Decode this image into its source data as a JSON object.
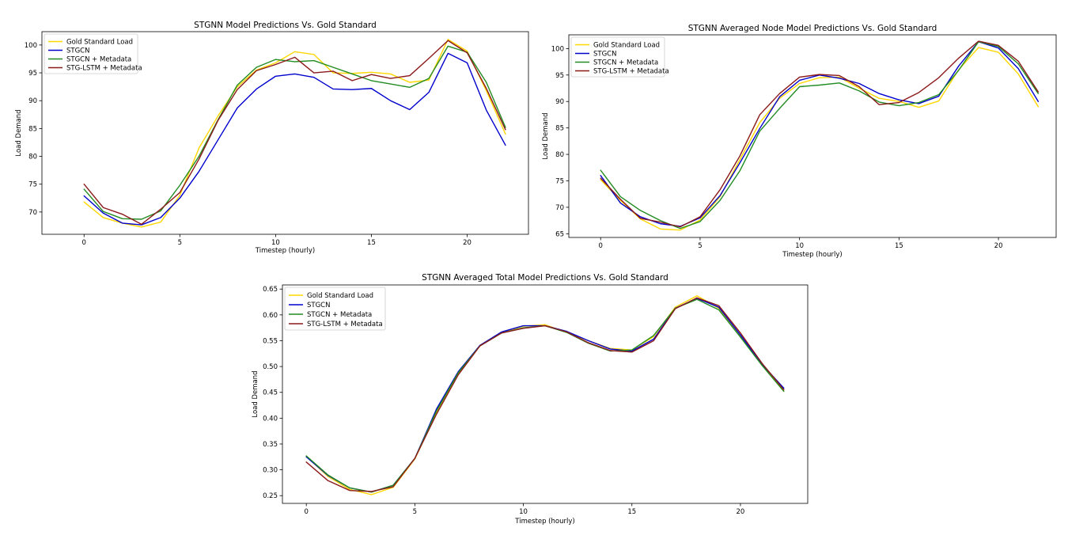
{
  "chart_data": [
    {
      "type": "line",
      "title": "STGNN Model Predictions Vs. Gold Standard",
      "xlabel": "Timestep (hourly)",
      "ylabel": "Load Demand",
      "x": [
        0,
        1,
        2,
        3,
        4,
        5,
        6,
        7,
        8,
        9,
        10,
        11,
        12,
        13,
        14,
        15,
        16,
        17,
        18,
        19,
        20,
        21,
        22
      ],
      "xlim": [
        -2.2,
        23.2
      ],
      "ylim": [
        66.0,
        102.4
      ],
      "xticks": [
        0,
        5,
        10,
        15,
        20
      ],
      "yticks": [
        70,
        75,
        80,
        85,
        90,
        95,
        100
      ],
      "legend_position": "upper-left",
      "grid": false,
      "series": [
        {
          "name": "Gold Standard Load",
          "color": "#FFD700",
          "values": [
            71.8,
            69.0,
            68.0,
            67.3,
            68.2,
            73.0,
            81.5,
            87.3,
            92.5,
            95.5,
            96.8,
            98.8,
            98.3,
            95.0,
            94.9,
            95.1,
            94.8,
            93.3,
            93.7,
            101.0,
            98.9,
            91.8,
            84.0
          ]
        },
        {
          "name": "STGCN",
          "color": "#0000CD",
          "values": [
            72.9,
            69.8,
            68.0,
            67.7,
            69.0,
            72.5,
            77.3,
            83.0,
            88.7,
            92.1,
            94.4,
            94.8,
            94.2,
            92.1,
            92.0,
            92.2,
            90.0,
            88.4,
            91.5,
            98.5,
            96.8,
            88.3,
            82.0
          ]
        },
        {
          "name": "STGCN + Metadata",
          "color": "#228B22",
          "values": [
            74.1,
            70.1,
            68.8,
            68.7,
            70.2,
            74.8,
            80.0,
            86.6,
            92.8,
            96.0,
            97.4,
            97.0,
            97.2,
            96.0,
            94.8,
            93.6,
            93.0,
            92.4,
            94.0,
            99.8,
            98.7,
            93.3,
            85.2
          ]
        },
        {
          "name": "STG-LSTM + Metadata",
          "color": "#8B1A1A",
          "values": [
            75.0,
            70.8,
            69.6,
            67.8,
            70.5,
            73.5,
            79.5,
            86.5,
            92.0,
            95.4,
            96.5,
            97.8,
            95.0,
            95.3,
            93.6,
            94.7,
            94.0,
            94.5,
            97.6,
            100.8,
            98.6,
            92.2,
            84.8
          ]
        }
      ]
    },
    {
      "type": "line",
      "title": "STGNN Averaged Node Model Predictions Vs. Gold Standard",
      "xlabel": "Timestep (hourly)",
      "ylabel": "Load Demand",
      "x": [
        0,
        1,
        2,
        3,
        4,
        5,
        6,
        7,
        8,
        9,
        10,
        11,
        12,
        13,
        14,
        15,
        16,
        17,
        18,
        19,
        20,
        21,
        22
      ],
      "xlim": [
        -1.6,
        22.9
      ],
      "ylim": [
        64.3,
        102.6
      ],
      "xticks": [
        0,
        5,
        10,
        15,
        20
      ],
      "yticks": [
        65,
        70,
        75,
        80,
        85,
        90,
        95,
        100
      ],
      "legend_position": "upper-left",
      "grid": false,
      "series": [
        {
          "name": "Gold Standard Load",
          "color": "#FFD700",
          "values": [
            75.2,
            71.3,
            67.8,
            65.9,
            65.7,
            67.6,
            72.0,
            79.0,
            86.0,
            90.6,
            93.4,
            94.5,
            94.6,
            92.5,
            90.6,
            90.0,
            88.9,
            90.1,
            96.0,
            100.2,
            99.3,
            95.2,
            89.0
          ]
        },
        {
          "name": "STGCN",
          "color": "#0000CD",
          "values": [
            76.0,
            70.8,
            68.2,
            66.9,
            66.4,
            68.0,
            72.2,
            78.4,
            84.9,
            90.9,
            94.0,
            95.0,
            94.4,
            93.4,
            91.5,
            90.3,
            89.6,
            91.0,
            96.7,
            101.3,
            100.1,
            96.2,
            90.0
          ]
        },
        {
          "name": "STGCN + Metadata",
          "color": "#228B22",
          "values": [
            77.0,
            72.0,
            69.4,
            67.5,
            66.0,
            67.3,
            71.3,
            76.9,
            84.4,
            88.7,
            92.8,
            93.1,
            93.5,
            92.0,
            89.9,
            89.2,
            89.8,
            91.3,
            95.9,
            101.3,
            100.4,
            97.1,
            91.5
          ]
        },
        {
          "name": "STG-LSTM + Metadata",
          "color": "#8B1A1A",
          "values": [
            75.5,
            71.5,
            67.9,
            67.2,
            66.3,
            68.2,
            73.3,
            79.7,
            87.5,
            91.5,
            94.6,
            95.1,
            94.9,
            92.8,
            89.4,
            89.8,
            91.7,
            94.5,
            98.2,
            101.4,
            100.6,
            97.6,
            91.8
          ]
        }
      ]
    },
    {
      "type": "line",
      "title": "STGNN Averaged Total Model Predictions Vs. Gold Standard",
      "xlabel": "Timestep (hourly)",
      "ylabel": "Load Demand",
      "x": [
        0,
        1,
        2,
        3,
        4,
        5,
        6,
        7,
        8,
        9,
        10,
        11,
        12,
        13,
        14,
        15,
        16,
        17,
        18,
        19,
        20,
        21,
        22
      ],
      "xlim": [
        -1.1,
        23.1
      ],
      "ylim": [
        0.235,
        0.658
      ],
      "xticks": [
        0,
        5,
        10,
        15,
        20
      ],
      "yticks": [
        0.25,
        0.3,
        0.35,
        0.4,
        0.45,
        0.5,
        0.55,
        0.6,
        0.65
      ],
      "ytick_labels": [
        "0.25",
        "0.30",
        "0.35",
        "0.40",
        "0.45",
        "0.50",
        "0.55",
        "0.60",
        "0.65"
      ],
      "legend_position": "upper-left",
      "grid": false,
      "series": [
        {
          "name": "Gold Standard Load",
          "color": "#FFD700",
          "values": [
            0.326,
            0.287,
            0.262,
            0.252,
            0.266,
            0.321,
            0.41,
            0.487,
            0.54,
            0.566,
            0.578,
            0.581,
            0.566,
            0.55,
            0.535,
            0.532,
            0.558,
            0.615,
            0.637,
            0.613,
            0.56,
            0.503,
            0.452
          ]
        },
        {
          "name": "STGCN",
          "color": "#0000CD",
          "values": [
            0.325,
            0.289,
            0.265,
            0.257,
            0.27,
            0.322,
            0.418,
            0.49,
            0.541,
            0.567,
            0.579,
            0.579,
            0.568,
            0.55,
            0.534,
            0.53,
            0.553,
            0.613,
            0.632,
            0.615,
            0.561,
            0.504,
            0.458
          ]
        },
        {
          "name": "STGCN + Metadata",
          "color": "#228B22",
          "values": [
            0.327,
            0.29,
            0.265,
            0.257,
            0.27,
            0.322,
            0.414,
            0.488,
            0.54,
            0.565,
            0.575,
            0.579,
            0.566,
            0.545,
            0.53,
            0.532,
            0.56,
            0.613,
            0.63,
            0.61,
            0.557,
            0.502,
            0.452
          ]
        },
        {
          "name": "STG-LSTM + Metadata",
          "color": "#8B1A1A",
          "values": [
            0.315,
            0.279,
            0.26,
            0.258,
            0.267,
            0.322,
            0.408,
            0.484,
            0.54,
            0.565,
            0.574,
            0.579,
            0.567,
            0.546,
            0.531,
            0.528,
            0.55,
            0.612,
            0.633,
            0.618,
            0.565,
            0.506,
            0.455
          ]
        }
      ]
    }
  ]
}
